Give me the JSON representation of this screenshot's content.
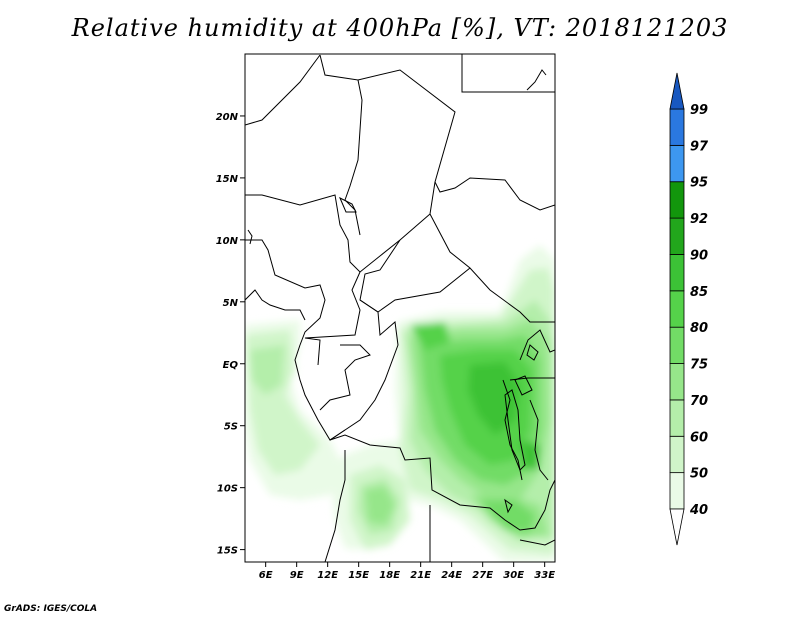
{
  "title": "Relative humidity at 400hPa [%], VT: 2018121203",
  "credit": "GrADS: IGES/COLA",
  "map": {
    "lon_range": [
      4,
      34
    ],
    "lat_range": [
      -16,
      25
    ],
    "lon_ticks": [
      "6E",
      "9E",
      "12E",
      "15E",
      "18E",
      "21E",
      "24E",
      "27E",
      "30E",
      "33E"
    ],
    "lat_ticks": [
      "20N",
      "15N",
      "10N",
      "5N",
      "EQ",
      "5S",
      "10S",
      "15S"
    ]
  },
  "colorbar": {
    "levels": [
      "40",
      "50",
      "60",
      "70",
      "75",
      "80",
      "85",
      "90",
      "92",
      "95",
      "97",
      "99"
    ],
    "colors": {
      "below_40": "#ffffff",
      "40-50": "#eafbe7",
      "50-60": "#d0f5c9",
      "60-70": "#b4eeaa",
      "70-75": "#96e68a",
      "75-80": "#72dc66",
      "80-85": "#55d24a",
      "85-90": "#3cc236",
      "90-92": "#22a61c",
      "92-95": "#12960c",
      "95-97": "#3d97f0",
      "97-99": "#2a78e0",
      "above_99": "#1858c0"
    }
  }
}
